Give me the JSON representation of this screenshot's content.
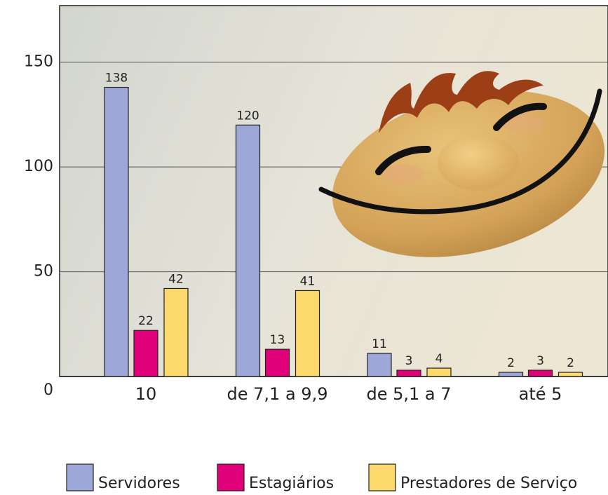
{
  "chart_data": {
    "type": "bar",
    "categories": [
      "10",
      "de 7,1 a 9,9",
      "de 5,1 a 7",
      "até 5"
    ],
    "series": [
      {
        "name": "Servidores",
        "color": "#9ea8d8",
        "values": [
          138,
          120,
          11,
          2
        ]
      },
      {
        "name": "Estagiários",
        "color": "#e0007a",
        "values": [
          22,
          13,
          3,
          3
        ]
      },
      {
        "name": "Prestadores de Serviço",
        "color": "#fcd96a",
        "values": [
          42,
          41,
          4,
          2
        ]
      }
    ],
    "ylim": [
      0,
      177
    ],
    "yticks": [
      0,
      50,
      100,
      150
    ],
    "grid": true,
    "legend": "bottom"
  }
}
